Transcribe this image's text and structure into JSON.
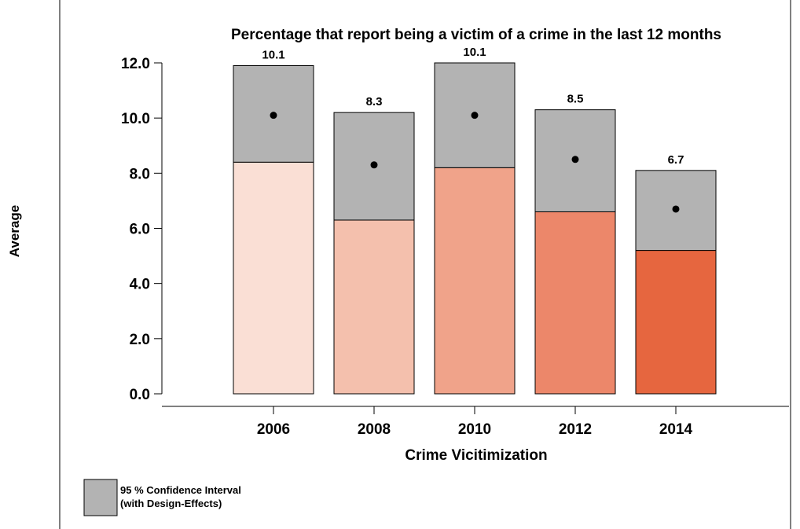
{
  "chart_data": {
    "type": "bar",
    "title": "Percentage that report being a victim of a crime in the last 12 months",
    "xlabel": "Crime Vicitimization",
    "ylabel": "Average",
    "categories": [
      "2006",
      "2008",
      "2010",
      "2012",
      "2014"
    ],
    "values": [
      10.1,
      8.3,
      10.1,
      8.5,
      6.7
    ],
    "value_labels": [
      "10.1",
      "8.3",
      "10.1",
      "8.5",
      "6.7"
    ],
    "ci_lower": [
      8.4,
      6.3,
      8.2,
      6.6,
      5.2
    ],
    "ci_upper": [
      11.9,
      10.2,
      12.0,
      10.3,
      8.1
    ],
    "bar_colors": [
      "#fadfd5",
      "#f4c0ad",
      "#f0a38a",
      "#ec876a",
      "#e6663f"
    ],
    "ci_color": "#b3b3b3",
    "ylim": [
      0,
      12
    ],
    "yticks": [
      "0.0",
      "2.0",
      "4.0",
      "6.0",
      "8.0",
      "10.0",
      "12.0"
    ],
    "grid": false,
    "legend": {
      "position": "bottom-left",
      "line1": "95 % Confidence Interval",
      "line2": "(with Design-Effects)"
    }
  }
}
